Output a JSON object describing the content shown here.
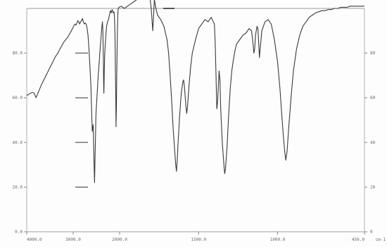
{
  "chart_data": {
    "type": "line",
    "title": "",
    "xlabel": "",
    "ylabel": "",
    "x_unit_label": "cm-1",
    "xlim": [
      4000,
      450
    ],
    "ylim": [
      0,
      100
    ],
    "x_tick_labels": [
      "4000.0",
      "3000.0",
      "2000.0",
      "1500.0",
      "1000.0",
      "450.0"
    ],
    "x_ticks": [
      4000,
      3000,
      2000,
      1500,
      1000,
      450
    ],
    "y_ticks_left": [
      {
        "value": 0,
        "label": "0.0"
      },
      {
        "value": 20,
        "label": "20.0"
      },
      {
        "value": 40,
        "label": "40.0"
      },
      {
        "value": 60,
        "label": "60.0"
      },
      {
        "value": 80,
        "label": "80.0"
      }
    ],
    "y_ticks_right": [
      {
        "value": 0,
        "label": "0"
      },
      {
        "value": 20,
        "label": "20"
      },
      {
        "value": 40,
        "label": "40"
      },
      {
        "value": 60,
        "label": "60"
      },
      {
        "value": 80,
        "label": "80"
      }
    ],
    "grid": false,
    "series": [
      {
        "color": "#3a3a3a",
        "points": [
          [
            4000,
            61
          ],
          [
            3960,
            61.5
          ],
          [
            3920,
            62
          ],
          [
            3880,
            62.5
          ],
          [
            3840,
            62
          ],
          [
            3800,
            60
          ],
          [
            3770,
            61.5
          ],
          [
            3730,
            63.5
          ],
          [
            3680,
            66
          ],
          [
            3620,
            68.5
          ],
          [
            3560,
            71
          ],
          [
            3500,
            73.5
          ],
          [
            3440,
            76
          ],
          [
            3380,
            78.5
          ],
          [
            3330,
            80
          ],
          [
            3280,
            82
          ],
          [
            3240,
            83.5
          ],
          [
            3200,
            85
          ],
          [
            3160,
            86
          ],
          [
            3120,
            87
          ],
          [
            3080,
            88.5
          ],
          [
            3040,
            90
          ],
          [
            3000,
            91.5
          ],
          [
            2980,
            92.5
          ],
          [
            2960,
            93
          ],
          [
            2940,
            92.5
          ],
          [
            2920,
            93.5
          ],
          [
            2900,
            94.5
          ],
          [
            2880,
            94
          ],
          [
            2860,
            93
          ],
          [
            2840,
            94
          ],
          [
            2820,
            94.5
          ],
          [
            2800,
            95.5
          ],
          [
            2780,
            94
          ],
          [
            2760,
            93
          ],
          [
            2740,
            93.5
          ],
          [
            2720,
            93
          ],
          [
            2700,
            91
          ],
          [
            2680,
            88
          ],
          [
            2660,
            82
          ],
          [
            2640,
            74
          ],
          [
            2620,
            66
          ],
          [
            2610,
            60
          ],
          [
            2600,
            52
          ],
          [
            2590,
            45
          ],
          [
            2580,
            46
          ],
          [
            2570,
            48
          ],
          [
            2560,
            40
          ],
          [
            2550,
            30
          ],
          [
            2540,
            22
          ],
          [
            2530,
            32
          ],
          [
            2520,
            42
          ],
          [
            2510,
            52
          ],
          [
            2500,
            56
          ],
          [
            2480,
            63
          ],
          [
            2460,
            70
          ],
          [
            2440,
            76
          ],
          [
            2420,
            82
          ],
          [
            2400,
            87
          ],
          [
            2390,
            90
          ],
          [
            2380,
            92
          ],
          [
            2370,
            94
          ],
          [
            2360,
            90
          ],
          [
            2350,
            78
          ],
          [
            2345,
            68
          ],
          [
            2340,
            62
          ],
          [
            2335,
            66
          ],
          [
            2330,
            72
          ],
          [
            2320,
            80
          ],
          [
            2300,
            87
          ],
          [
            2280,
            92
          ],
          [
            2260,
            94
          ],
          [
            2240,
            95
          ],
          [
            2220,
            97
          ],
          [
            2200,
            99
          ],
          [
            2180,
            98
          ],
          [
            2160,
            99.5
          ],
          [
            2140,
            98
          ],
          [
            2120,
            98.5
          ],
          [
            2110,
            96
          ],
          [
            2100,
            88
          ],
          [
            2090,
            70
          ],
          [
            2082,
            58
          ],
          [
            2078,
            47
          ],
          [
            2070,
            55
          ],
          [
            2060,
            72
          ],
          [
            2050,
            88
          ],
          [
            2040,
            97
          ],
          [
            2030,
            100
          ],
          [
            2010,
            100.5
          ],
          [
            1990,
            101
          ],
          [
            1970,
            100
          ],
          [
            1950,
            101
          ],
          [
            1930,
            102
          ],
          [
            1910,
            103
          ],
          [
            1890,
            104
          ],
          [
            1870,
            106
          ],
          [
            1850,
            108
          ],
          [
            1835,
            107
          ],
          [
            1820,
            109
          ],
          [
            1810,
            106
          ],
          [
            1800,
            100
          ],
          [
            1795,
            95
          ],
          [
            1790,
            90
          ],
          [
            1785,
            97
          ],
          [
            1780,
            104
          ],
          [
            1770,
            100
          ],
          [
            1760,
            97
          ],
          [
            1740,
            95
          ],
          [
            1720,
            92
          ],
          [
            1700,
            86
          ],
          [
            1690,
            80
          ],
          [
            1680,
            70
          ],
          [
            1670,
            58
          ],
          [
            1660,
            45
          ],
          [
            1650,
            35
          ],
          [
            1645,
            30
          ],
          [
            1640,
            27
          ],
          [
            1635,
            32
          ],
          [
            1630,
            40
          ],
          [
            1620,
            52
          ],
          [
            1610,
            62
          ],
          [
            1600,
            67
          ],
          [
            1595,
            68
          ],
          [
            1590,
            65
          ],
          [
            1580,
            56
          ],
          [
            1575,
            53
          ],
          [
            1570,
            56
          ],
          [
            1560,
            66
          ],
          [
            1550,
            74
          ],
          [
            1540,
            80
          ],
          [
            1520,
            86
          ],
          [
            1500,
            91
          ],
          [
            1480,
            93
          ],
          [
            1460,
            95
          ],
          [
            1440,
            94
          ],
          [
            1420,
            96
          ],
          [
            1400,
            93
          ],
          [
            1395,
            85
          ],
          [
            1390,
            70
          ],
          [
            1385,
            55
          ],
          [
            1380,
            58
          ],
          [
            1375,
            65
          ],
          [
            1370,
            72
          ],
          [
            1365,
            68
          ],
          [
            1360,
            55
          ],
          [
            1350,
            40
          ],
          [
            1340,
            30
          ],
          [
            1335,
            26
          ],
          [
            1330,
            28
          ],
          [
            1320,
            38
          ],
          [
            1310,
            52
          ],
          [
            1300,
            64
          ],
          [
            1290,
            72
          ],
          [
            1280,
            77
          ],
          [
            1270,
            81
          ],
          [
            1260,
            84
          ],
          [
            1240,
            86
          ],
          [
            1220,
            88
          ],
          [
            1200,
            89
          ],
          [
            1180,
            91
          ],
          [
            1165,
            90
          ],
          [
            1155,
            84
          ],
          [
            1150,
            80
          ],
          [
            1145,
            82
          ],
          [
            1140,
            88
          ],
          [
            1130,
            92
          ],
          [
            1125,
            91
          ],
          [
            1120,
            85
          ],
          [
            1115,
            78
          ],
          [
            1110,
            82
          ],
          [
            1100,
            90
          ],
          [
            1080,
            94
          ],
          [
            1060,
            95
          ],
          [
            1040,
            93
          ],
          [
            1020,
            86
          ],
          [
            1000,
            76
          ],
          [
            985,
            64
          ],
          [
            975,
            54
          ],
          [
            965,
            44
          ],
          [
            955,
            36
          ],
          [
            948,
            32
          ],
          [
            940,
            36
          ],
          [
            930,
            46
          ],
          [
            915,
            60
          ],
          [
            900,
            72
          ],
          [
            880,
            82
          ],
          [
            860,
            88
          ],
          [
            840,
            92
          ],
          [
            820,
            94
          ],
          [
            800,
            96
          ],
          [
            780,
            97
          ],
          [
            760,
            98
          ],
          [
            740,
            98.5
          ],
          [
            720,
            99
          ],
          [
            700,
            99
          ],
          [
            680,
            99.5
          ],
          [
            660,
            99.5
          ],
          [
            640,
            100
          ],
          [
            620,
            100
          ],
          [
            600,
            100.5
          ],
          [
            580,
            100.5
          ],
          [
            560,
            100.5
          ],
          [
            540,
            101
          ],
          [
            520,
            101
          ],
          [
            500,
            101
          ],
          [
            480,
            101
          ],
          [
            460,
            101
          ],
          [
            450,
            101
          ]
        ]
      }
    ]
  }
}
